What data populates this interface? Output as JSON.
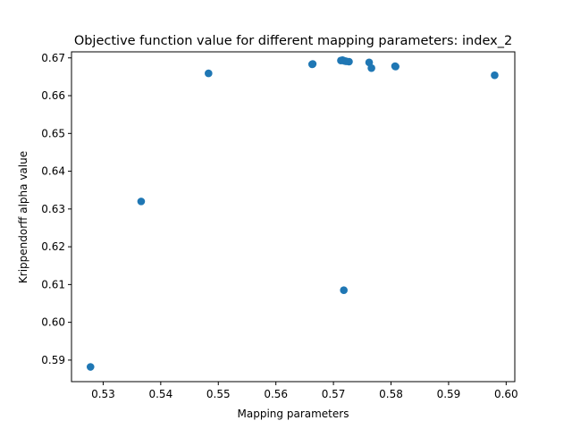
{
  "chart_data": {
    "type": "scatter",
    "title": "Objective function value for different mapping parameters: index_2",
    "xlabel": "Mapping parameters",
    "ylabel": "Krippendorff alpha value",
    "xlim": [
      0.5245,
      0.6015
    ],
    "ylim": [
      0.5843,
      0.6716
    ],
    "xticks": [
      "0.53",
      "0.54",
      "0.55",
      "0.56",
      "0.57",
      "0.58",
      "0.59",
      "0.60"
    ],
    "yticks": [
      "0.59",
      "0.60",
      "0.61",
      "0.62",
      "0.63",
      "0.64",
      "0.65",
      "0.66",
      "0.67"
    ],
    "grid": false,
    "marker_color": "#1f77b4",
    "points": [
      {
        "x": 0.5278,
        "y": 0.5882
      },
      {
        "x": 0.5366,
        "y": 0.632
      },
      {
        "x": 0.5483,
        "y": 0.6659
      },
      {
        "x": 0.5663,
        "y": 0.6683
      },
      {
        "x": 0.5664,
        "y": 0.6684
      },
      {
        "x": 0.5713,
        "y": 0.6693
      },
      {
        "x": 0.5716,
        "y": 0.6694
      },
      {
        "x": 0.5719,
        "y": 0.6692
      },
      {
        "x": 0.5722,
        "y": 0.6691
      },
      {
        "x": 0.5727,
        "y": 0.669
      },
      {
        "x": 0.5718,
        "y": 0.6085
      },
      {
        "x": 0.5762,
        "y": 0.6688
      },
      {
        "x": 0.5766,
        "y": 0.6673
      },
      {
        "x": 0.5807,
        "y": 0.6678
      },
      {
        "x": 0.5808,
        "y": 0.6677
      },
      {
        "x": 0.598,
        "y": 0.6654
      }
    ]
  }
}
